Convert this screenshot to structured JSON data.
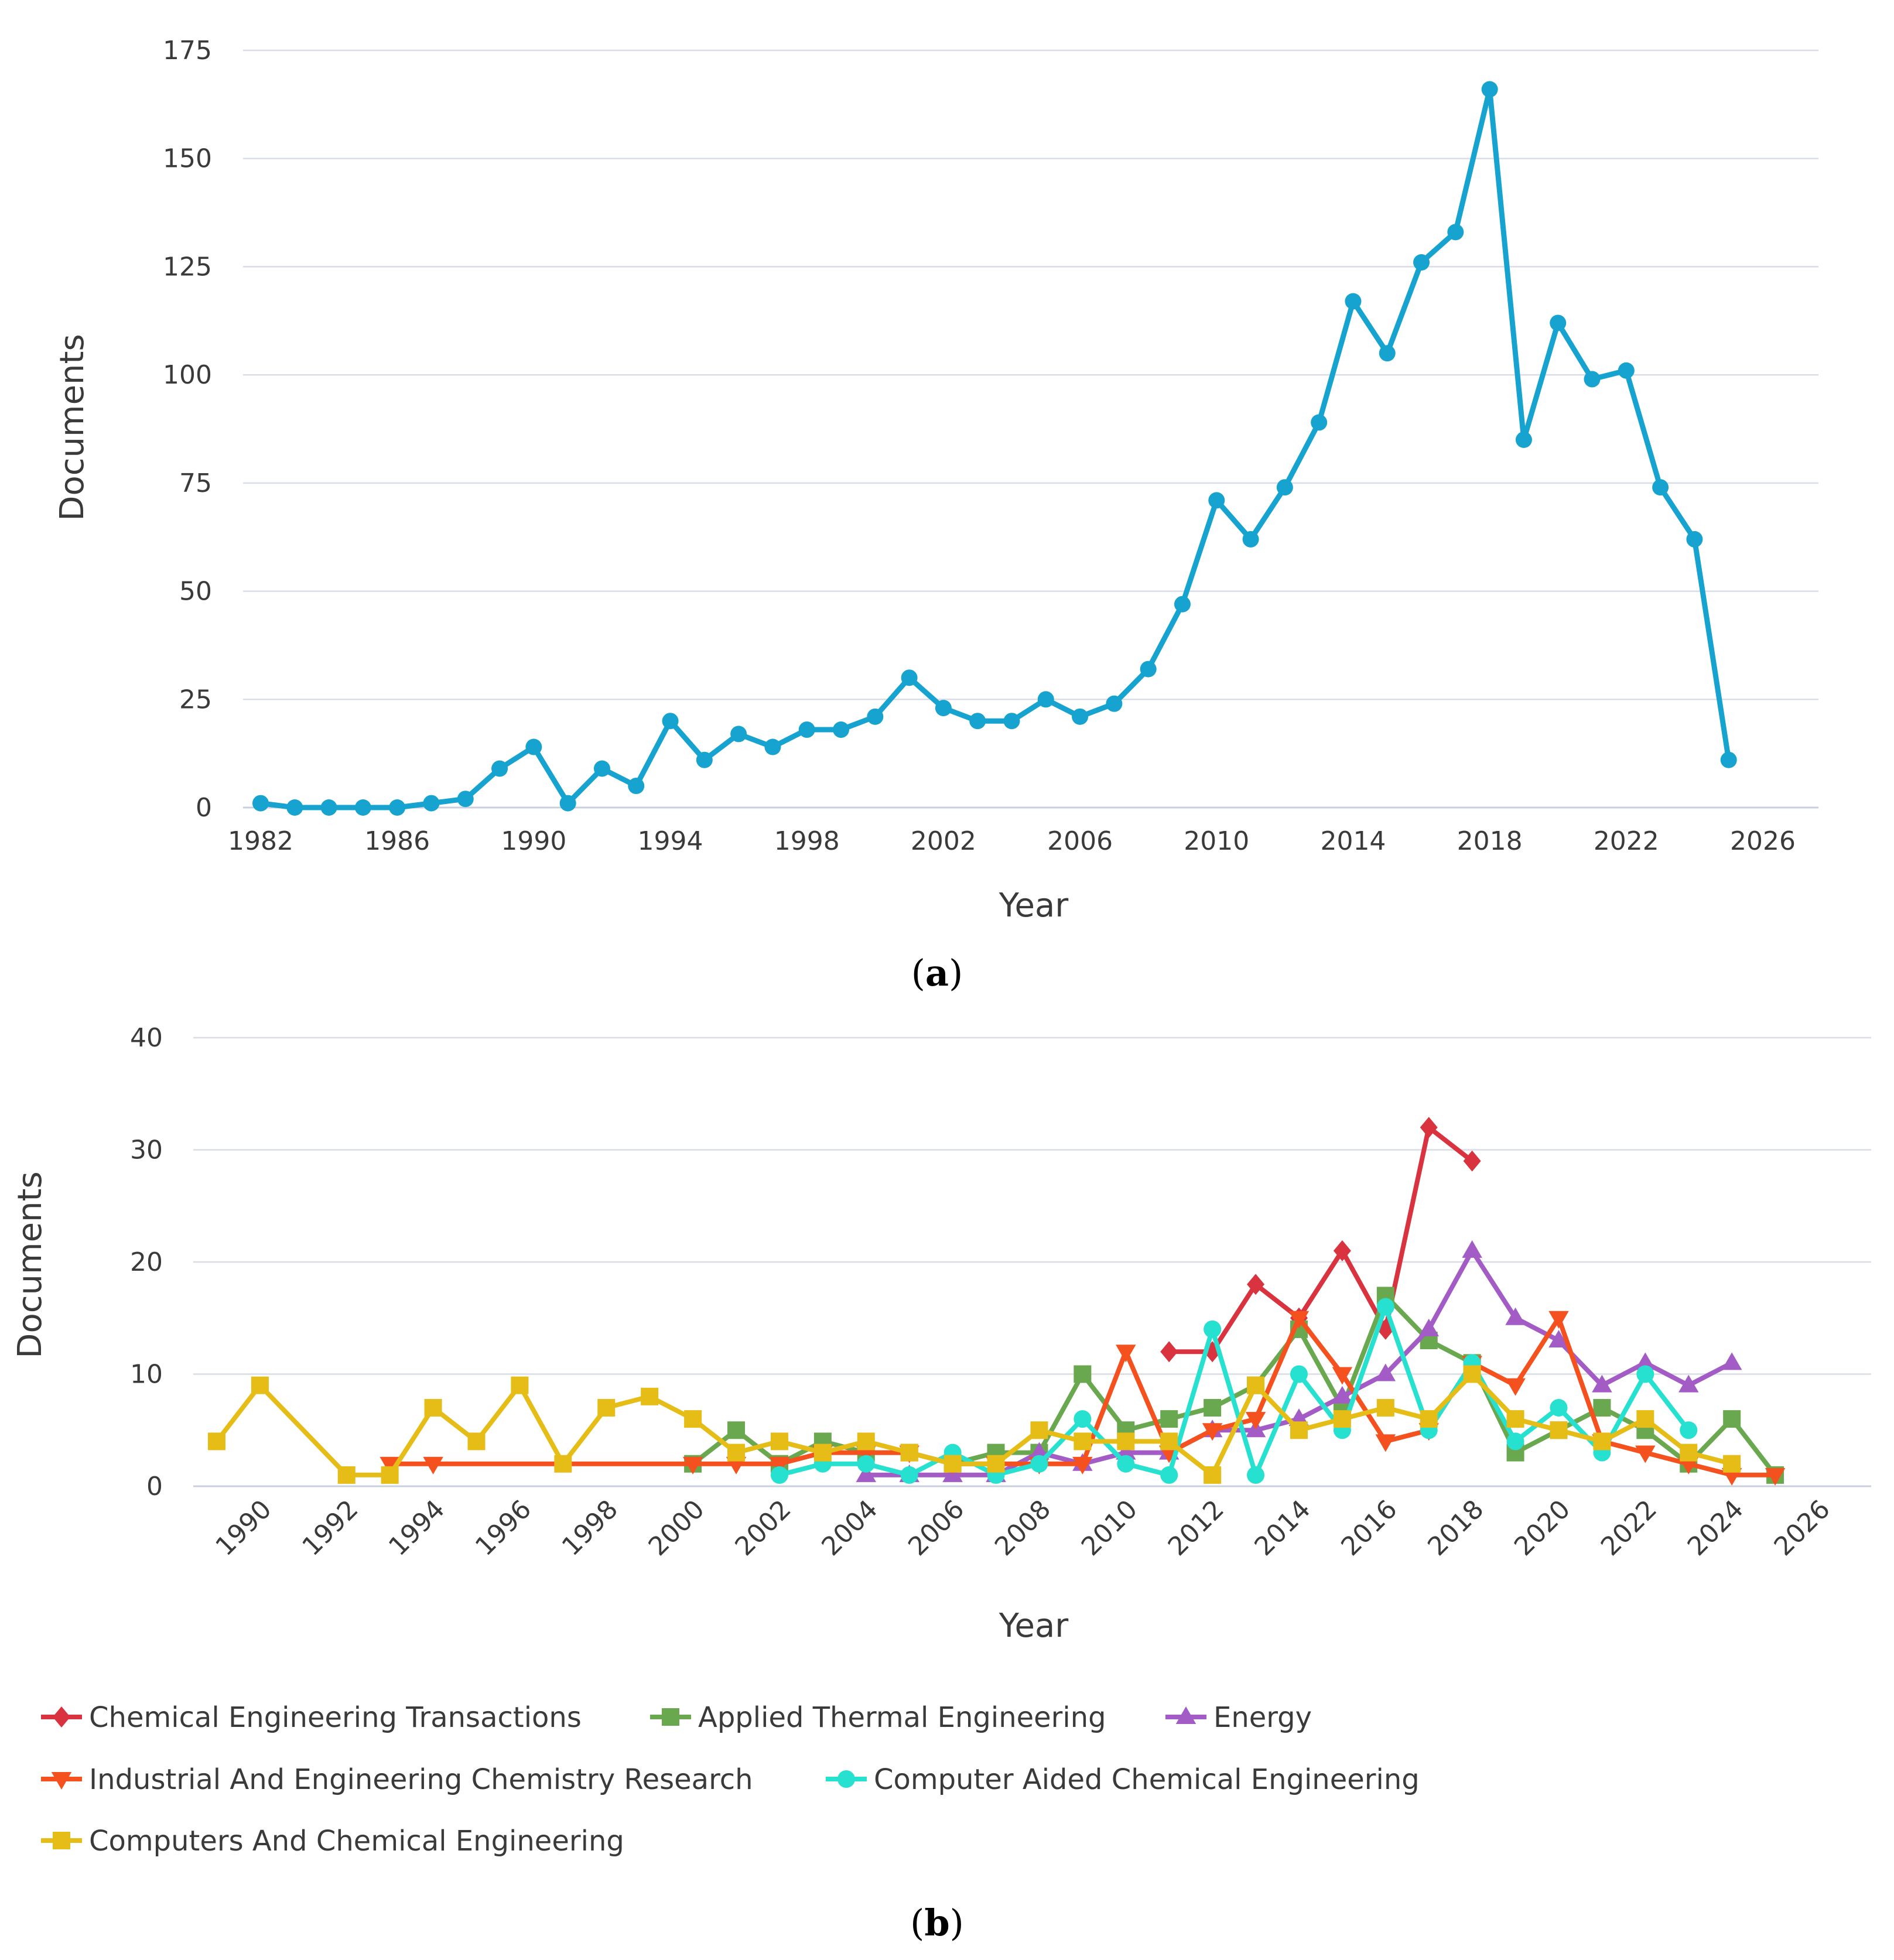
{
  "chart_data": [
    {
      "type": "line",
      "panel_label": "a",
      "xlabel": "Year",
      "ylabel": "Documents",
      "xlim": [
        1982,
        2026
      ],
      "ylim": [
        0,
        175
      ],
      "x_ticks": [
        1982,
        1986,
        1990,
        1994,
        1998,
        2002,
        2006,
        2010,
        2014,
        2018,
        2022,
        2026
      ],
      "y_ticks": [
        0,
        25,
        50,
        75,
        100,
        125,
        150,
        175
      ],
      "grid": true,
      "series": [
        {
          "name": "Documents",
          "color": "#16a3cf",
          "marker": "circle",
          "x": [
            1982,
            1983,
            1984,
            1985,
            1986,
            1987,
            1988,
            1989,
            1990,
            1991,
            1992,
            1993,
            1994,
            1995,
            1996,
            1997,
            1998,
            1999,
            2000,
            2001,
            2002,
            2003,
            2004,
            2005,
            2006,
            2007,
            2008,
            2009,
            2010,
            2011,
            2012,
            2013,
            2014,
            2015,
            2016,
            2017,
            2018,
            2019,
            2020,
            2021,
            2022,
            2023,
            2024,
            2025
          ],
          "y": [
            1,
            0,
            0,
            0,
            0,
            1,
            2,
            9,
            14,
            1,
            9,
            5,
            20,
            11,
            17,
            14,
            18,
            18,
            21,
            30,
            23,
            20,
            20,
            25,
            21,
            24,
            32,
            47,
            71,
            62,
            74,
            89,
            117,
            105,
            126,
            133,
            166,
            85,
            112,
            99,
            101,
            74,
            62,
            11
          ]
        }
      ]
    },
    {
      "type": "line",
      "panel_label": "b",
      "xlabel": "Year",
      "ylabel": "Documents",
      "xlim": [
        1989,
        2026
      ],
      "ylim": [
        0,
        40
      ],
      "x_ticks": [
        1990,
        1992,
        1994,
        1996,
        1998,
        2000,
        2002,
        2004,
        2006,
        2008,
        2010,
        2012,
        2014,
        2016,
        2018,
        2020,
        2022,
        2024,
        2026
      ],
      "y_ticks": [
        0,
        10,
        20,
        30,
        40
      ],
      "grid": true,
      "legend_placement": "bottom",
      "series": [
        {
          "name": "Chemical Engineering Transactions",
          "color": "#d9333f",
          "marker": "diamond",
          "x": [
            2011,
            2012,
            2013,
            2014,
            2015,
            2016,
            2017,
            2018
          ],
          "y": [
            12,
            12,
            18,
            15,
            21,
            14,
            32,
            29
          ]
        },
        {
          "name": "Applied Thermal Engineering",
          "color": "#6aa84f",
          "marker": "square",
          "x": [
            2000,
            2001,
            2002,
            2003,
            2004,
            2005,
            2006,
            2007,
            2008,
            2009,
            2010,
            2011,
            2012,
            2013,
            2014,
            2015,
            2016,
            2017,
            2018,
            2019,
            2020,
            2021,
            2022,
            2023,
            2024,
            2025
          ],
          "y": [
            2,
            5,
            2,
            4,
            3,
            3,
            2,
            3,
            3,
            10,
            5,
            6,
            7,
            9,
            14,
            7,
            17,
            13,
            11,
            3,
            5,
            7,
            5,
            2,
            6,
            1
          ]
        },
        {
          "name": "Energy",
          "color": "#a35bc6",
          "marker": "triangle-up",
          "x": [
            2004,
            2005,
            2006,
            2007,
            2008,
            2009,
            2010,
            2011,
            2012,
            2013,
            2014,
            2015,
            2016,
            2017,
            2018,
            2019,
            2020,
            2021,
            2022,
            2023,
            2024
          ],
          "y": [
            1,
            1,
            1,
            1,
            3,
            2,
            3,
            3,
            5,
            5,
            6,
            8,
            10,
            14,
            21,
            15,
            13,
            9,
            11,
            9,
            11
          ]
        },
        {
          "name": "Industrial And Engineering Chemistry Research",
          "color": "#f4511e",
          "marker": "triangle-down",
          "x": [
            1993,
            1994,
            2000,
            2001,
            2002,
            2003,
            2004,
            2005,
            2006,
            2007,
            2008,
            2009,
            2010,
            2011,
            2012,
            2013,
            2014,
            2015,
            2016,
            2017,
            2018,
            2019,
            2020,
            2021,
            2022,
            2023,
            2024,
            2025
          ],
          "y": [
            2,
            2,
            2,
            2,
            2,
            3,
            3,
            3,
            2,
            2,
            2,
            2,
            12,
            3,
            5,
            6,
            15,
            10,
            4,
            5,
            11,
            9,
            15,
            4,
            3,
            2,
            1,
            1
          ]
        },
        {
          "name": "Computer Aided Chemical Engineering",
          "color": "#26e0d0",
          "marker": "circle",
          "x": [
            2002,
            2003,
            2004,
            2005,
            2006,
            2007,
            2008,
            2009,
            2010,
            2011,
            2012,
            2013,
            2014,
            2015,
            2016,
            2017,
            2018,
            2019,
            2020,
            2021,
            2022,
            2023
          ],
          "y": [
            1,
            2,
            2,
            1,
            3,
            1,
            2,
            6,
            2,
            1,
            14,
            1,
            10,
            5,
            16,
            5,
            11,
            4,
            7,
            3,
            10,
            5
          ]
        },
        {
          "name": "Computers And Chemical Engineering",
          "color": "#e6bc17",
          "marker": "square",
          "x": [
            1989,
            1990,
            1992,
            1993,
            1994,
            1995,
            1996,
            1997,
            1998,
            1999,
            2000,
            2001,
            2002,
            2003,
            2004,
            2005,
            2006,
            2007,
            2008,
            2009,
            2010,
            2011,
            2012,
            2013,
            2014,
            2015,
            2016,
            2017,
            2018,
            2019,
            2020,
            2021,
            2022,
            2023,
            2024
          ],
          "y": [
            4,
            9,
            1,
            1,
            7,
            4,
            9,
            2,
            7,
            8,
            6,
            3,
            4,
            3,
            4,
            3,
            2,
            2,
            5,
            4,
            4,
            4,
            1,
            9,
            5,
            6,
            7,
            6,
            10,
            6,
            5,
            4,
            6,
            3,
            2
          ]
        }
      ]
    }
  ]
}
